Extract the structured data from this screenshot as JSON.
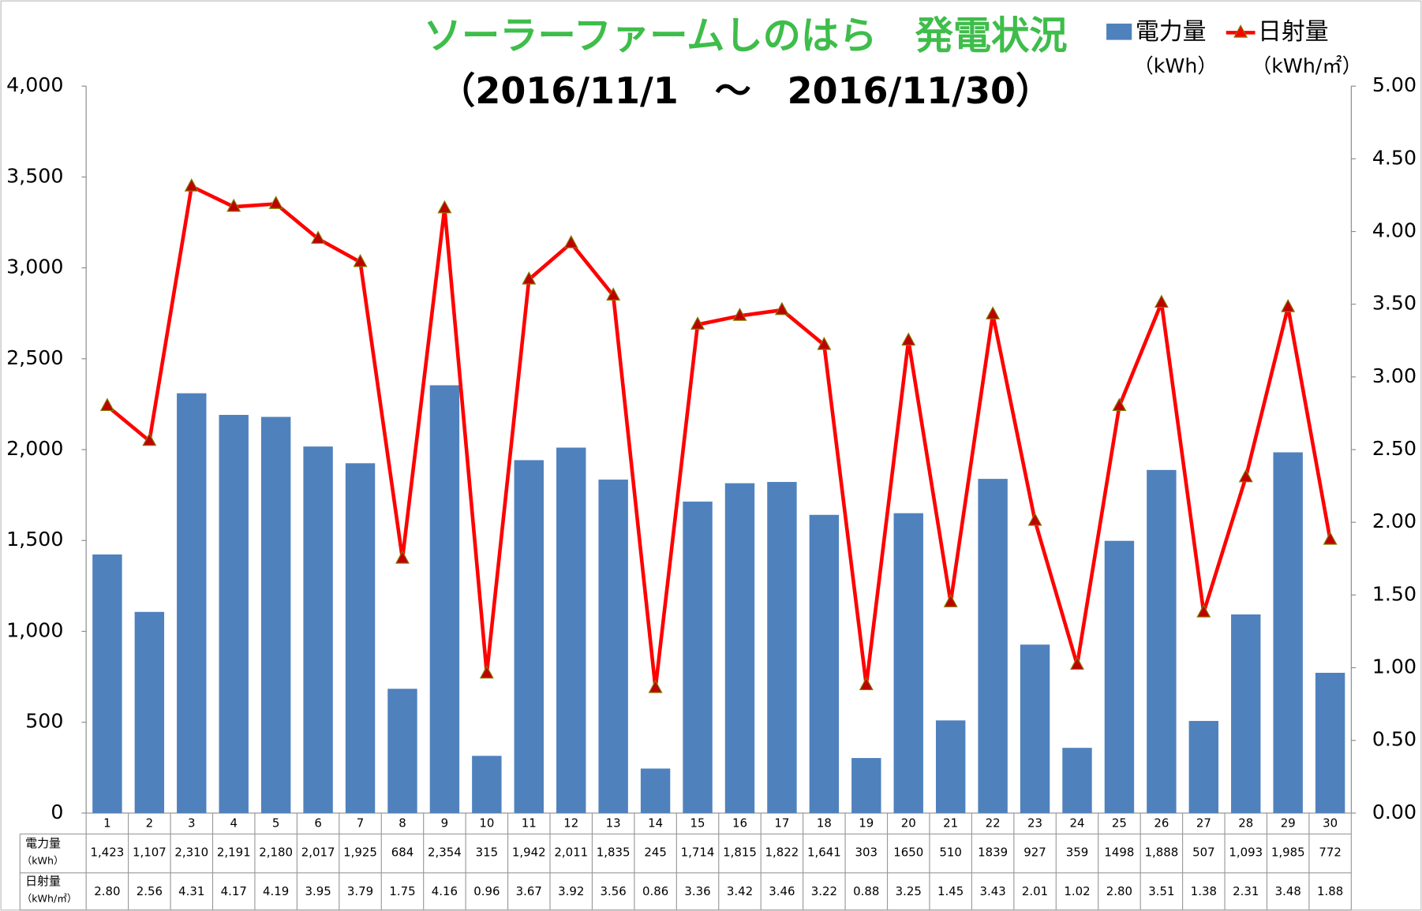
{
  "chart_data": {
    "type": "bar_line",
    "title": "ソーラーファームしのはら　発電状況",
    "subtitle": "（2016/11/1　～　2016/11/30）",
    "categories": [
      "1",
      "2",
      "3",
      "4",
      "5",
      "6",
      "7",
      "8",
      "9",
      "10",
      "11",
      "12",
      "13",
      "14",
      "15",
      "16",
      "17",
      "18",
      "19",
      "20",
      "21",
      "22",
      "23",
      "24",
      "25",
      "26",
      "27",
      "28",
      "29",
      "30"
    ],
    "series": [
      {
        "name": "電力量",
        "unit": "（kWh）",
        "color": "#4f81bd",
        "axis": "y",
        "values": [
          1423,
          1107,
          2310,
          2191,
          2180,
          2017,
          1925,
          684,
          2354,
          315,
          1942,
          2011,
          1835,
          245,
          1714,
          1815,
          1822,
          1641,
          303,
          1650,
          510,
          1839,
          927,
          359,
          1498,
          1888,
          507,
          1093,
          1985,
          772
        ],
        "value_labels": [
          "1,423",
          "1,107",
          "2,310",
          "2,191",
          "2,180",
          "2,017",
          "1,925",
          "684",
          "2,354",
          "315",
          "1,942",
          "2,011",
          "1,835",
          "245",
          "1,714",
          "1,815",
          "1,822",
          "1,641",
          "303",
          "1650",
          "510",
          "1839",
          "927",
          "359",
          "1498",
          "1,888",
          "507",
          "1,093",
          "1,985",
          "772"
        ]
      },
      {
        "name": "日射量",
        "unit": "（kWh/㎡）",
        "color": "#ff0000",
        "marker_color": "#c00000",
        "axis": "y2",
        "values": [
          2.8,
          2.56,
          4.31,
          4.17,
          4.19,
          3.95,
          3.79,
          1.75,
          4.16,
          0.96,
          3.67,
          3.92,
          3.56,
          0.86,
          3.36,
          3.42,
          3.46,
          3.22,
          0.88,
          3.25,
          1.45,
          3.43,
          2.01,
          1.02,
          2.8,
          3.51,
          1.38,
          2.31,
          3.48,
          1.88
        ],
        "value_labels": [
          "2.80",
          "2.56",
          "4.31",
          "4.17",
          "4.19",
          "3.95",
          "3.79",
          "1.75",
          "4.16",
          "0.96",
          "3.67",
          "3.92",
          "3.56",
          "0.86",
          "3.36",
          "3.42",
          "3.46",
          "3.22",
          "0.88",
          "3.25",
          "1.45",
          "3.43",
          "2.01",
          "1.02",
          "2.80",
          "3.51",
          "1.38",
          "2.31",
          "3.48",
          "1.88"
        ]
      }
    ],
    "ylim": [
      0,
      4000
    ],
    "yticks": [
      0,
      500,
      {
        "value": 1000,
        "label": "1,000"
      },
      {
        "value": 1500,
        "label": "1,500"
      },
      {
        "value": 2000,
        "label": "2,000"
      },
      {
        "value": 2500,
        "label": "2,500"
      },
      {
        "value": 3000,
        "label": "3,000"
      },
      {
        "value": 3500,
        "label": "3,500"
      },
      {
        "value": 4000,
        "label": "4,000"
      }
    ],
    "y2lim": [
      0,
      5
    ],
    "y2ticks": [
      {
        "value": 0,
        "label": "0.00"
      },
      {
        "value": 0.5,
        "label": "0.50"
      },
      {
        "value": 1,
        "label": "1.00"
      },
      {
        "value": 1.5,
        "label": "1.50"
      },
      {
        "value": 2,
        "label": "2.00"
      },
      {
        "value": 2.5,
        "label": "2.50"
      },
      {
        "value": 3,
        "label": "3.00"
      },
      {
        "value": 3.5,
        "label": "3.50"
      },
      {
        "value": 4,
        "label": "4.00"
      },
      {
        "value": 4.5,
        "label": "4.50"
      },
      {
        "value": 5,
        "label": "5.00"
      }
    ],
    "legend": "top-right"
  }
}
